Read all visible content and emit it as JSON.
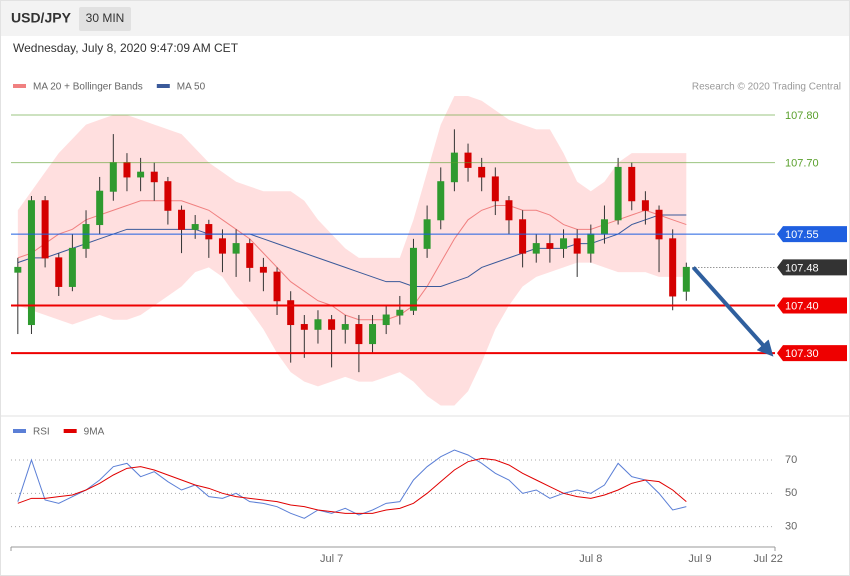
{
  "header": {
    "symbol": "USD/JPY",
    "interval": "30 MIN",
    "timestamp": "Wednesday, July 8, 2020 9:47:09 AM CET",
    "credit": "Research © 2020 Trading Central"
  },
  "chart_data": [
    {
      "type": "candlestick",
      "up_color": "#2f9a2f",
      "down_color": "#d40000",
      "ylim": [
        107.17,
        107.84
      ],
      "open": [
        107.47,
        107.36,
        107.62,
        107.5,
        107.44,
        107.52,
        107.57,
        107.64,
        107.7,
        107.67,
        107.68,
        107.66,
        107.6,
        107.56,
        107.57,
        107.54,
        107.51,
        107.53,
        107.48,
        107.47,
        107.41,
        107.36,
        107.35,
        107.37,
        107.35,
        107.36,
        107.32,
        107.36,
        107.38,
        107.39,
        107.52,
        107.58,
        107.66,
        107.72,
        107.69,
        107.67,
        107.62,
        107.58,
        107.51,
        107.53,
        107.52,
        107.54,
        107.51,
        107.55,
        107.58,
        107.69,
        107.62,
        107.6,
        107.54,
        107.43,
        null,
        null,
        null,
        null,
        null,
        null
      ],
      "high": [
        107.5,
        107.63,
        107.63,
        107.51,
        107.55,
        107.6,
        107.67,
        107.76,
        107.72,
        107.71,
        107.7,
        107.67,
        107.61,
        107.59,
        107.58,
        107.56,
        107.56,
        107.54,
        107.5,
        107.48,
        107.43,
        107.38,
        107.39,
        107.38,
        107.38,
        107.38,
        107.38,
        107.4,
        107.42,
        107.54,
        107.61,
        107.69,
        107.77,
        107.74,
        107.71,
        107.69,
        107.63,
        107.6,
        107.55,
        107.55,
        107.56,
        107.56,
        107.57,
        107.61,
        107.71,
        107.7,
        107.64,
        107.61,
        107.56,
        107.49,
        null,
        null,
        null,
        null,
        null,
        null
      ],
      "low": [
        107.34,
        107.34,
        107.48,
        107.42,
        107.43,
        107.5,
        107.55,
        107.62,
        107.64,
        107.64,
        107.62,
        107.57,
        107.51,
        107.54,
        107.5,
        107.47,
        107.46,
        107.45,
        107.43,
        107.38,
        107.28,
        107.29,
        107.32,
        107.27,
        107.32,
        107.26,
        107.3,
        107.34,
        107.36,
        107.38,
        107.5,
        107.56,
        107.64,
        107.66,
        107.64,
        107.59,
        107.55,
        107.48,
        107.49,
        107.49,
        107.5,
        107.46,
        107.49,
        107.53,
        107.57,
        107.6,
        107.57,
        107.47,
        107.39,
        107.41,
        null,
        null,
        null,
        null,
        null,
        null
      ],
      "close": [
        107.48,
        107.62,
        107.5,
        107.44,
        107.52,
        107.57,
        107.64,
        107.7,
        107.67,
        107.68,
        107.66,
        107.6,
        107.56,
        107.57,
        107.54,
        107.51,
        107.53,
        107.48,
        107.47,
        107.41,
        107.36,
        107.35,
        107.37,
        107.35,
        107.36,
        107.32,
        107.36,
        107.38,
        107.39,
        107.52,
        107.58,
        107.66,
        107.72,
        107.69,
        107.67,
        107.62,
        107.58,
        107.51,
        107.53,
        107.52,
        107.54,
        107.51,
        107.55,
        107.58,
        107.69,
        107.62,
        107.6,
        107.54,
        107.42,
        107.48,
        null,
        null,
        null,
        null,
        null,
        null
      ],
      "series": [
        {
          "name": "MA 20 + Bollinger Bands",
          "color": "#f08080",
          "band_color": "#ffd9d9",
          "values": [
            107.5,
            107.51,
            107.53,
            107.55,
            107.56,
            107.58,
            107.59,
            107.6,
            107.61,
            107.62,
            107.62,
            107.62,
            107.62,
            107.61,
            107.6,
            107.58,
            107.56,
            107.54,
            107.51,
            107.48,
            107.45,
            107.43,
            107.41,
            107.4,
            107.38,
            107.37,
            107.37,
            107.37,
            107.38,
            107.4,
            107.44,
            107.49,
            107.54,
            107.58,
            107.6,
            107.61,
            107.61,
            107.6,
            107.6,
            107.59,
            107.57,
            107.56,
            107.56,
            107.57,
            107.58,
            107.59,
            107.6,
            107.59,
            107.58,
            107.57,
            null,
            null,
            null,
            null,
            null,
            null
          ],
          "upper": [
            107.6,
            107.64,
            107.68,
            107.72,
            107.75,
            107.78,
            107.79,
            107.8,
            107.8,
            107.79,
            107.78,
            107.77,
            107.76,
            107.73,
            107.7,
            107.68,
            107.66,
            107.65,
            107.64,
            107.64,
            107.64,
            107.62,
            107.58,
            107.55,
            107.52,
            107.5,
            107.5,
            107.5,
            107.5,
            107.58,
            107.68,
            107.78,
            107.84,
            107.84,
            107.83,
            107.81,
            107.79,
            107.78,
            107.77,
            107.77,
            107.72,
            107.66,
            107.64,
            107.66,
            107.7,
            107.72,
            107.72,
            107.72,
            107.72,
            107.72,
            null,
            null,
            null,
            null,
            null,
            null
          ],
          "lower": [
            107.4,
            107.39,
            107.38,
            107.37,
            107.36,
            107.37,
            107.38,
            107.37,
            107.37,
            107.38,
            107.4,
            107.42,
            107.44,
            107.47,
            107.48,
            107.46,
            107.42,
            107.39,
            107.35,
            107.3,
            107.26,
            107.24,
            107.23,
            107.24,
            107.25,
            107.24,
            107.24,
            107.25,
            107.26,
            107.24,
            107.21,
            107.19,
            107.19,
            107.22,
            107.28,
            107.35,
            107.4,
            107.44,
            107.46,
            107.47,
            107.48,
            107.49,
            107.49,
            107.48,
            107.47,
            107.47,
            107.47,
            107.46,
            107.46,
            107.46,
            null,
            null,
            null,
            null,
            null,
            null
          ]
        },
        {
          "name": "MA 50",
          "color": "#3b5a9a",
          "values": [
            107.49,
            107.5,
            107.5,
            107.51,
            107.52,
            107.53,
            107.54,
            107.55,
            107.56,
            107.56,
            107.56,
            107.56,
            107.56,
            107.56,
            107.55,
            107.55,
            107.55,
            107.55,
            107.54,
            107.53,
            107.52,
            107.51,
            107.5,
            107.49,
            107.48,
            107.47,
            107.46,
            107.45,
            107.45,
            107.44,
            107.44,
            107.44,
            107.45,
            107.46,
            107.48,
            107.49,
            107.5,
            107.51,
            107.52,
            107.52,
            107.52,
            107.53,
            107.53,
            107.54,
            107.55,
            107.57,
            107.58,
            107.59,
            107.59,
            107.59,
            null,
            null,
            null,
            null,
            null,
            null
          ]
        }
      ],
      "levels": [
        {
          "value": 107.8,
          "label": "107.80",
          "color": "#5aa02c",
          "line": "thin",
          "box": false
        },
        {
          "value": 107.7,
          "label": "107.70",
          "color": "#5aa02c",
          "line": "thin",
          "box": false
        },
        {
          "value": 107.55,
          "label": "107.55",
          "color": "#1f5fe0",
          "line": "thin",
          "box": true
        },
        {
          "value": 107.48,
          "label": "107.48",
          "color": "#333333",
          "line": "dotted",
          "box": true
        },
        {
          "value": 107.4,
          "label": "107.40",
          "color": "#ee0000",
          "line": "thick",
          "box": true
        },
        {
          "value": 107.3,
          "label": "107.30",
          "color": "#ee0000",
          "line": "thick",
          "box": true
        }
      ],
      "forecast_color": "#2f5f9e"
    },
    {
      "type": "line",
      "ylim": [
        19,
        82
      ],
      "yticks": [
        30,
        50,
        70
      ],
      "grid": "dotted",
      "categories": [
        null,
        null,
        null,
        null,
        null,
        null,
        null,
        null,
        null,
        null,
        null,
        null,
        null,
        null,
        null,
        null,
        null,
        null,
        null,
        null,
        null,
        null,
        null,
        "Jul 7",
        null,
        null,
        null,
        null,
        null,
        null,
        null,
        null,
        null,
        null,
        null,
        null,
        null,
        null,
        null,
        null,
        null,
        null,
        "Jul 8",
        null,
        null,
        null,
        null,
        null,
        null,
        null,
        "Jul 9",
        null,
        null,
        null,
        null,
        "Jul 22"
      ],
      "series": [
        {
          "name": "RSI",
          "color": "#5b7fd6",
          "values": [
            45,
            70,
            46,
            44,
            48,
            52,
            58,
            66,
            68,
            60,
            63,
            57,
            52,
            55,
            48,
            47,
            50,
            45,
            44,
            42,
            38,
            35,
            40,
            38,
            41,
            37,
            40,
            44,
            45,
            58,
            66,
            72,
            76,
            73,
            68,
            62,
            58,
            50,
            52,
            47,
            50,
            52,
            50,
            55,
            68,
            60,
            58,
            50,
            40,
            42,
            null,
            null,
            null,
            null,
            null,
            null
          ]
        },
        {
          "name": "9MA",
          "color": "#e00000",
          "values": [
            44,
            47,
            47,
            48,
            49,
            52,
            56,
            61,
            65,
            66,
            64,
            61,
            58,
            55,
            53,
            50,
            48,
            47,
            46,
            45,
            43,
            42,
            40,
            39,
            38,
            38,
            38,
            40,
            41,
            44,
            50,
            57,
            64,
            69,
            71,
            70,
            67,
            62,
            58,
            54,
            50,
            48,
            47,
            49,
            52,
            56,
            58,
            57,
            52,
            45,
            null,
            null,
            null,
            null,
            null,
            null
          ]
        }
      ]
    }
  ]
}
